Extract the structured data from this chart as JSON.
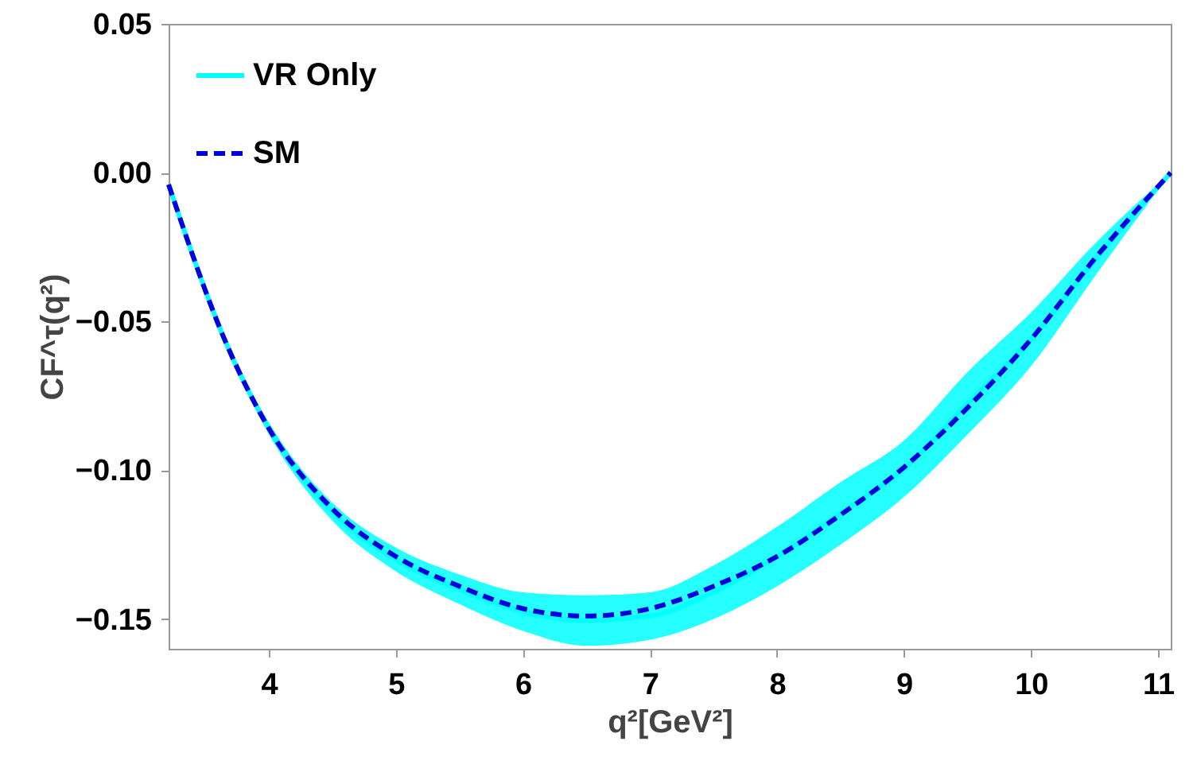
{
  "chart_data": {
    "type": "line",
    "xlabel": "q²[GeV²]",
    "ylabel": "CF^τ(q²)",
    "xlim": [
      3.21,
      11.1
    ],
    "ylim": [
      -0.16,
      0.05
    ],
    "xticks": [
      4,
      5,
      6,
      7,
      8,
      9,
      10,
      11
    ],
    "yticks": [
      0.05,
      {
        "value": 0,
        "label": "0.00"
      },
      {
        "value": -0.05,
        "label": "−0.05"
      },
      {
        "value": -0.1,
        "label": "−0.10"
      },
      {
        "value": -0.15,
        "label": "−0.15"
      }
    ],
    "grid": false,
    "legend": "top left",
    "series": [
      {
        "name": "VR Only",
        "color": "#00ffff",
        "line_style": "solid",
        "x": [
          3.21,
          3.67,
          4.0,
          4.5,
          5.0,
          5.5,
          6.0,
          6.5,
          7.0,
          7.5,
          8.0,
          8.5,
          9.0,
          9.5,
          10.0,
          10.5,
          11.1
        ],
        "values": [
          -0.004,
          -0.058,
          -0.086,
          -0.114,
          -0.13,
          -0.14,
          -0.1475,
          -0.1505,
          -0.149,
          -0.141,
          -0.129,
          -0.1145,
          -0.0995,
          -0.0775,
          -0.056,
          -0.0295,
          0.0
        ],
        "lower": [
          -0.004,
          -0.059,
          -0.088,
          -0.117,
          -0.134,
          -0.145,
          -0.154,
          -0.159,
          -0.157,
          -0.15,
          -0.139,
          -0.125,
          -0.109,
          -0.088,
          -0.065,
          -0.035,
          0.0
        ],
        "upper": [
          -0.004,
          -0.057,
          -0.084,
          -0.111,
          -0.126,
          -0.135,
          -0.141,
          -0.142,
          -0.141,
          -0.132,
          -0.119,
          -0.104,
          -0.09,
          -0.067,
          -0.047,
          -0.024,
          0.0
        ]
      },
      {
        "name": "SM",
        "color": "#0000dd",
        "line_style": "dashed",
        "x": [
          3.21,
          3.67,
          4.0,
          4.5,
          5.0,
          5.5,
          6.0,
          6.5,
          7.0,
          7.5,
          8.0,
          8.5,
          9.0,
          9.5,
          10.0,
          10.5,
          11.1
        ],
        "values": [
          -0.004,
          -0.058,
          -0.086,
          -0.113,
          -0.129,
          -0.139,
          -0.1465,
          -0.149,
          -0.1465,
          -0.139,
          -0.129,
          -0.115,
          -0.099,
          -0.079,
          -0.056,
          -0.029,
          0.0
        ]
      }
    ]
  }
}
